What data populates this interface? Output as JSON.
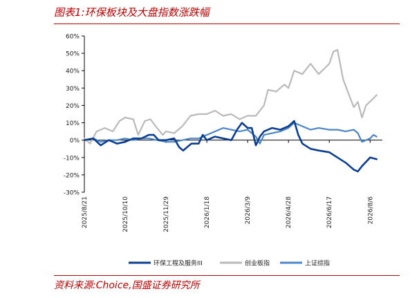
{
  "header": {
    "title": "图表1:环保板块及大盘指数涨跌幅"
  },
  "footer": {
    "source": "资料来源:Choice,国盛证券研究所"
  },
  "chart_data": {
    "type": "line",
    "title": "",
    "xlabel": "",
    "ylabel": "",
    "y_unit": "%",
    "ylim": [
      -30,
      60
    ],
    "y_ticks": [
      -30,
      -20,
      -10,
      0,
      10,
      20,
      30,
      40,
      50,
      60
    ],
    "y_tick_labels": [
      "-30%",
      "-20%",
      "-10%",
      "0%",
      "10%",
      "20%",
      "30%",
      "40%",
      "50%",
      "60%"
    ],
    "x_range": [
      "2025/8/21",
      "2026/8/21"
    ],
    "x_ticks": [
      "2025/8/21",
      "2025/10/10",
      "2025/11/29",
      "2026/1/18",
      "2026/3/9",
      "2026/4/28",
      "2026/6/17",
      "2026/8/6"
    ],
    "grid": false,
    "legend_position": "bottom",
    "series": [
      {
        "name": "环保工程及服务III",
        "color": "#0b3d91",
        "points": [
          [
            "2025/8/21",
            0
          ],
          [
            "2025/9/1",
            1
          ],
          [
            "2025/9/10",
            -3
          ],
          [
            "2025/9/20",
            0
          ],
          [
            "2025/9/30",
            -2
          ],
          [
            "2025/10/10",
            -1
          ],
          [
            "2025/10/20",
            1
          ],
          [
            "2025/10/30",
            1
          ],
          [
            "2025/11/8",
            3
          ],
          [
            "2025/11/14",
            3
          ],
          [
            "2025/11/20",
            0
          ],
          [
            "2025/11/29",
            0
          ],
          [
            "2025/12/9",
            1
          ],
          [
            "2025/12/15",
            -4
          ],
          [
            "2025/12/20",
            -6
          ],
          [
            "2025/12/30",
            -2
          ],
          [
            "2026/1/8",
            -2
          ],
          [
            "2026/1/13",
            3
          ],
          [
            "2026/1/18",
            0
          ],
          [
            "2026/1/28",
            2
          ],
          [
            "2026/2/7",
            1
          ],
          [
            "2026/2/17",
            0
          ],
          [
            "2026/2/24",
            6
          ],
          [
            "2026/3/2",
            10
          ],
          [
            "2026/3/9",
            7
          ],
          [
            "2026/3/14",
            7
          ],
          [
            "2026/3/19",
            -3
          ],
          [
            "2026/3/24",
            2
          ],
          [
            "2026/3/29",
            5
          ],
          [
            "2026/4/8",
            7
          ],
          [
            "2026/4/18",
            6
          ],
          [
            "2026/4/28",
            8
          ],
          [
            "2026/5/5",
            11
          ],
          [
            "2026/5/10",
            3
          ],
          [
            "2026/5/15",
            -2
          ],
          [
            "2026/5/25",
            -5
          ],
          [
            "2026/6/4",
            -6
          ],
          [
            "2026/6/17",
            -7
          ],
          [
            "2026/6/27",
            -10
          ],
          [
            "2026/7/7",
            -13
          ],
          [
            "2026/7/17",
            -17
          ],
          [
            "2026/7/22",
            -18
          ],
          [
            "2026/7/27",
            -15
          ],
          [
            "2026/8/6",
            -10
          ],
          [
            "2026/8/14",
            -11
          ]
        ]
      },
      {
        "name": "创业板指",
        "color": "#b9b9b9",
        "points": [
          [
            "2025/8/21",
            1
          ],
          [
            "2025/8/28",
            -2
          ],
          [
            "2025/9/5",
            5
          ],
          [
            "2025/9/15",
            7
          ],
          [
            "2025/9/25",
            5
          ],
          [
            "2025/10/3",
            11
          ],
          [
            "2025/10/10",
            13
          ],
          [
            "2025/10/20",
            12
          ],
          [
            "2025/10/26",
            3
          ],
          [
            "2025/11/3",
            11
          ],
          [
            "2025/11/10",
            12
          ],
          [
            "2025/11/18",
            7
          ],
          [
            "2025/11/25",
            3
          ],
          [
            "2025/11/29",
            5
          ],
          [
            "2025/12/9",
            4
          ],
          [
            "2025/12/19",
            8
          ],
          [
            "2025/12/29",
            14
          ],
          [
            "2026/1/8",
            15
          ],
          [
            "2026/1/18",
            15
          ],
          [
            "2026/1/28",
            17
          ],
          [
            "2026/2/7",
            14
          ],
          [
            "2026/2/17",
            15
          ],
          [
            "2026/2/27",
            12
          ],
          [
            "2026/3/9",
            14
          ],
          [
            "2026/3/19",
            14
          ],
          [
            "2026/3/29",
            20
          ],
          [
            "2026/4/3",
            29
          ],
          [
            "2026/4/13",
            28
          ],
          [
            "2026/4/23",
            32
          ],
          [
            "2026/4/28",
            30
          ],
          [
            "2026/5/5",
            40
          ],
          [
            "2026/5/15",
            38
          ],
          [
            "2026/5/25",
            44
          ],
          [
            "2026/6/4",
            38
          ],
          [
            "2026/6/17",
            44
          ],
          [
            "2026/6/22",
            51
          ],
          [
            "2026/6/27",
            52
          ],
          [
            "2026/7/4",
            35
          ],
          [
            "2026/7/12",
            25
          ],
          [
            "2026/7/17",
            19
          ],
          [
            "2026/7/22",
            22
          ],
          [
            "2026/7/27",
            13
          ],
          [
            "2026/8/1",
            20
          ],
          [
            "2026/8/10",
            24
          ],
          [
            "2026/8/14",
            26
          ]
        ]
      },
      {
        "name": "上证综指",
        "color": "#4a85c7",
        "points": [
          [
            "2025/8/21",
            0
          ],
          [
            "2025/9/1",
            1
          ],
          [
            "2025/9/10",
            -1
          ],
          [
            "2025/9/20",
            0
          ],
          [
            "2025/9/30",
            0
          ],
          [
            "2025/10/10",
            1
          ],
          [
            "2025/10/20",
            0
          ],
          [
            "2025/10/30",
            1
          ],
          [
            "2025/11/8",
            1
          ],
          [
            "2025/11/18",
            0
          ],
          [
            "2025/11/29",
            -1
          ],
          [
            "2025/12/9",
            -1
          ],
          [
            "2025/12/19",
            0
          ],
          [
            "2025/12/29",
            1
          ],
          [
            "2026/1/8",
            1
          ],
          [
            "2026/1/18",
            3
          ],
          [
            "2026/1/28",
            5
          ],
          [
            "2026/2/7",
            7
          ],
          [
            "2026/2/17",
            6
          ],
          [
            "2026/2/27",
            5
          ],
          [
            "2026/3/9",
            6
          ],
          [
            "2026/3/19",
            2
          ],
          [
            "2026/3/24",
            -2
          ],
          [
            "2026/3/29",
            3
          ],
          [
            "2026/4/8",
            4
          ],
          [
            "2026/4/18",
            5
          ],
          [
            "2026/4/28",
            7
          ],
          [
            "2026/5/5",
            10
          ],
          [
            "2026/5/15",
            8
          ],
          [
            "2026/5/25",
            6
          ],
          [
            "2026/6/4",
            7
          ],
          [
            "2026/6/17",
            6
          ],
          [
            "2026/6/27",
            6
          ],
          [
            "2026/7/7",
            5
          ],
          [
            "2026/7/17",
            6
          ],
          [
            "2026/7/22",
            4
          ],
          [
            "2026/7/27",
            -1
          ],
          [
            "2026/8/1",
            0
          ],
          [
            "2026/8/6",
            1
          ],
          [
            "2026/8/10",
            3
          ],
          [
            "2026/8/14",
            2
          ]
        ]
      }
    ]
  }
}
